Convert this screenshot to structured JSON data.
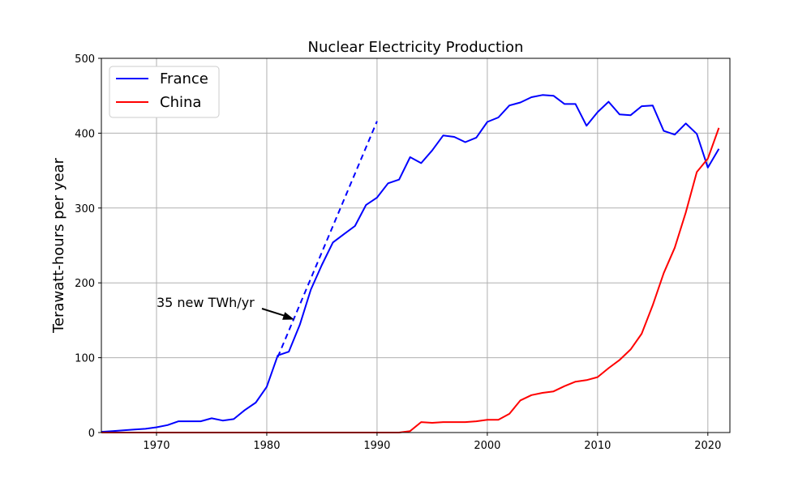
{
  "chart_data": {
    "type": "line",
    "title": "Nuclear Electricity Production",
    "xlabel": "",
    "ylabel": "Terawatt-hours per year",
    "xlim": [
      1965,
      2022
    ],
    "ylim": [
      0,
      500
    ],
    "xticks": [
      1970,
      1980,
      1990,
      2000,
      2010,
      2020
    ],
    "yticks": [
      0,
      100,
      200,
      300,
      400,
      500
    ],
    "grid": true,
    "legend_position": "top-left",
    "series": [
      {
        "name": "France",
        "color": "#0000ff",
        "x": [
          1965,
          1966,
          1967,
          1968,
          1969,
          1970,
          1971,
          1972,
          1973,
          1974,
          1975,
          1976,
          1977,
          1978,
          1979,
          1980,
          1981,
          1982,
          1983,
          1984,
          1985,
          1986,
          1987,
          1988,
          1989,
          1990,
          1991,
          1992,
          1993,
          1994,
          1995,
          1996,
          1997,
          1998,
          1999,
          2000,
          2001,
          2002,
          2003,
          2004,
          2005,
          2006,
          2007,
          2008,
          2009,
          2010,
          2011,
          2012,
          2013,
          2014,
          2015,
          2016,
          2017,
          2018,
          2019,
          2020,
          2021
        ],
        "y": [
          1,
          2,
          3,
          4,
          5,
          7,
          10,
          15,
          15,
          15,
          19,
          16,
          18,
          30,
          40,
          61,
          103,
          108,
          144,
          191,
          224,
          254,
          265,
          276,
          304,
          314,
          333,
          338,
          368,
          360,
          377,
          397,
          395,
          388,
          394,
          415,
          421,
          437,
          441,
          448,
          451,
          450,
          439,
          439,
          410,
          428,
          442,
          425,
          424,
          436,
          437,
          403,
          398,
          413,
          399,
          354,
          379
        ]
      },
      {
        "name": "China",
        "color": "#ff0000",
        "x": [
          1965,
          1970,
          1975,
          1980,
          1985,
          1990,
          1992,
          1993,
          1994,
          1995,
          1996,
          1997,
          1998,
          1999,
          2000,
          2001,
          2002,
          2003,
          2004,
          2005,
          2006,
          2007,
          2008,
          2009,
          2010,
          2011,
          2012,
          2013,
          2014,
          2015,
          2016,
          2017,
          2018,
          2019,
          2020,
          2021
        ],
        "y": [
          0,
          0,
          0,
          0,
          0,
          0,
          0,
          2,
          14,
          13,
          14,
          14,
          14,
          15,
          17,
          17,
          25,
          43,
          50,
          53,
          55,
          62,
          68,
          70,
          74,
          86,
          97,
          111,
          132,
          170,
          213,
          247,
          294,
          348,
          366,
          407
        ]
      }
    ],
    "trend_line": {
      "color": "#0000ff",
      "style": "dashed",
      "x": [
        1981,
        1990
      ],
      "y": [
        101,
        416
      ]
    },
    "annotation": {
      "text": "35 new TWh/yr",
      "data_x": 1970,
      "data_y": 173,
      "arrow_to_x": 1982.5,
      "arrow_to_y": 151
    }
  }
}
